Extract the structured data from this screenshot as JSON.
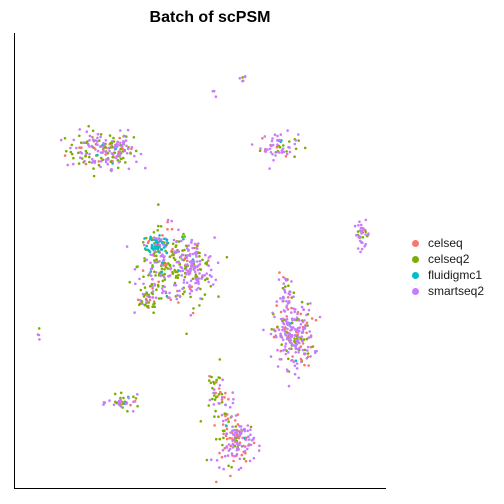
{
  "chart_data": {
    "type": "scatter",
    "title": "Batch of scPSM",
    "xlabel": "",
    "ylabel": "",
    "axis_ticks": false,
    "grid": false,
    "legend_position": "right",
    "categories": [
      "celseq",
      "celseq2",
      "fluidigmc1",
      "smartseq2"
    ],
    "colors": {
      "celseq": "#F8766D",
      "celseq2": "#7CAE00",
      "fluidigmc1": "#00BFC4",
      "smartseq2": "#C77CFF"
    },
    "xlim": [
      0,
      100
    ],
    "ylim": [
      0,
      100
    ],
    "clusters": [
      {
        "cx": 22,
        "cy": 75,
        "sx": 4.6,
        "sy": 2.2,
        "counts": {
          "celseq": 18,
          "celseq2": 55,
          "fluidigmc1": 3,
          "smartseq2": 70
        }
      },
      {
        "cx": 28,
        "cy": 75,
        "sx": 2.5,
        "sy": 2.0,
        "counts": {
          "celseq": 6,
          "celseq2": 20,
          "fluidigmc1": 1,
          "smartseq2": 30
        }
      },
      {
        "cx": 72,
        "cy": 76,
        "sx": 2.6,
        "sy": 1.5,
        "counts": {
          "celseq": 6,
          "celseq2": 16,
          "fluidigmc1": 2,
          "smartseq2": 38
        }
      },
      {
        "cx": 95,
        "cy": 56,
        "sx": 1.1,
        "sy": 1.5,
        "counts": {
          "celseq": 3,
          "celseq2": 8,
          "fluidigmc1": 0,
          "smartseq2": 26
        }
      },
      {
        "cx": 40,
        "cy": 49,
        "sx": 3.6,
        "sy": 4.2,
        "counts": {
          "celseq": 30,
          "celseq2": 90,
          "fluidigmc1": 8,
          "smartseq2": 70
        }
      },
      {
        "cx": 48,
        "cy": 48,
        "sx": 3.0,
        "sy": 3.6,
        "counts": {
          "celseq": 18,
          "celseq2": 45,
          "fluidigmc1": 2,
          "smartseq2": 110
        }
      },
      {
        "cx": 38,
        "cy": 54,
        "sx": 1.3,
        "sy": 1.0,
        "counts": {
          "celseq": 4,
          "celseq2": 6,
          "fluidigmc1": 45,
          "smartseq2": 6
        }
      },
      {
        "cx": 35,
        "cy": 41,
        "sx": 1.8,
        "sy": 1.4,
        "counts": {
          "celseq": 4,
          "celseq2": 28,
          "fluidigmc1": 0,
          "smartseq2": 6
        }
      },
      {
        "cx": 76,
        "cy": 33,
        "sx": 2.8,
        "sy": 3.6,
        "counts": {
          "celseq": 45,
          "celseq2": 45,
          "fluidigmc1": 2,
          "smartseq2": 140
        }
      },
      {
        "cx": 74,
        "cy": 42,
        "sx": 1.2,
        "sy": 2.4,
        "counts": {
          "celseq": 5,
          "celseq2": 8,
          "fluidigmc1": 0,
          "smartseq2": 25
        }
      },
      {
        "cx": 57,
        "cy": 13,
        "sx": 1.8,
        "sy": 4.6,
        "counts": {
          "celseq": 20,
          "celseq2": 24,
          "fluidigmc1": 2,
          "smartseq2": 22
        }
      },
      {
        "cx": 61,
        "cy": 9,
        "sx": 2.0,
        "sy": 2.6,
        "counts": {
          "celseq": 28,
          "celseq2": 18,
          "fluidigmc1": 1,
          "smartseq2": 60
        }
      },
      {
        "cx": 54,
        "cy": 21,
        "sx": 1.3,
        "sy": 2.6,
        "counts": {
          "celseq": 4,
          "celseq2": 14,
          "fluidigmc1": 0,
          "smartseq2": 6
        }
      },
      {
        "cx": 29,
        "cy": 18,
        "sx": 2.2,
        "sy": 0.8,
        "counts": {
          "celseq": 6,
          "celseq2": 14,
          "fluidigmc1": 3,
          "smartseq2": 18
        }
      },
      {
        "cx": 62,
        "cy": 91,
        "sx": 0.6,
        "sy": 0.8,
        "counts": {
          "celseq": 0,
          "celseq2": 2,
          "fluidigmc1": 0,
          "smartseq2": 4
        }
      },
      {
        "cx": 54,
        "cy": 88,
        "sx": 0.4,
        "sy": 0.6,
        "counts": {
          "celseq": 0,
          "celseq2": 0,
          "fluidigmc1": 0,
          "smartseq2": 3
        }
      },
      {
        "cx": 5,
        "cy": 33,
        "sx": 0.4,
        "sy": 0.6,
        "counts": {
          "celseq": 0,
          "celseq2": 1,
          "fluidigmc1": 0,
          "smartseq2": 3
        }
      }
    ]
  }
}
